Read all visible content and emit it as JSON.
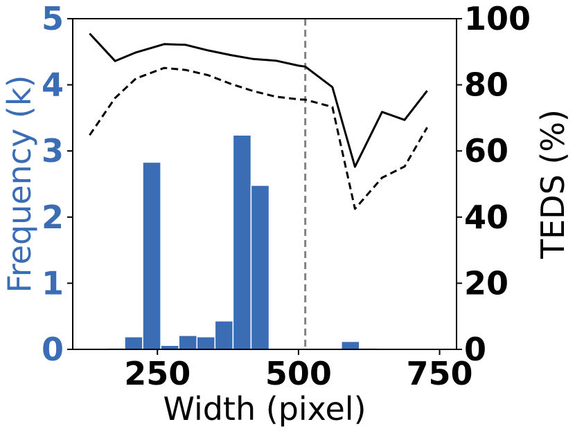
{
  "chart_data": {
    "type": "bar",
    "xlabel": "Width (pixel)",
    "ylabel_left": "Frequency (k)",
    "ylabel_right": "TEDS (%)",
    "xlim": [
      100,
      780
    ],
    "ylim_left": [
      0,
      5
    ],
    "ylim_right": [
      0,
      100
    ],
    "x_ticks": [
      250,
      500,
      750
    ],
    "y_ticks_left": [
      0,
      1,
      2,
      3,
      4,
      5
    ],
    "y_ticks_right": [
      0,
      20,
      40,
      60,
      80,
      100
    ],
    "grid": false,
    "bins": {
      "width": 32,
      "starts": [
        160,
        192,
        224,
        256,
        288,
        320,
        352,
        384,
        416,
        448,
        480,
        512,
        544,
        576,
        608,
        640,
        672,
        704
      ],
      "values": [
        0.02,
        0.19,
        2.83,
        0.06,
        0.21,
        0.19,
        0.43,
        3.24,
        2.48,
        0,
        0,
        0,
        0,
        0.12,
        0.02,
        0,
        0,
        0
      ]
    },
    "bar_color": "#3b6db4",
    "vline_x": 512,
    "series": [
      {
        "style": "solid",
        "x": [
          130,
          175,
          212,
          262,
          300,
          340,
          380,
          420,
          460,
          500,
          512,
          560,
          600,
          648,
          688,
          728
        ],
        "y": [
          95.5,
          87.2,
          89.8,
          92.3,
          92.1,
          90.4,
          89.0,
          87.8,
          87.3,
          85.8,
          85.5,
          79.3,
          55.2,
          71.8,
          69.4,
          78.2
        ]
      },
      {
        "style": "dashed",
        "x": [
          130,
          175,
          212,
          262,
          300,
          340,
          380,
          420,
          460,
          500,
          512,
          560,
          600,
          648,
          688,
          728
        ],
        "y": [
          64.8,
          76.0,
          81.9,
          85.1,
          84.5,
          82.9,
          80.3,
          78.1,
          76.4,
          75.6,
          75.5,
          73.3,
          42.5,
          51.9,
          55.3,
          67.1
        ]
      }
    ]
  }
}
